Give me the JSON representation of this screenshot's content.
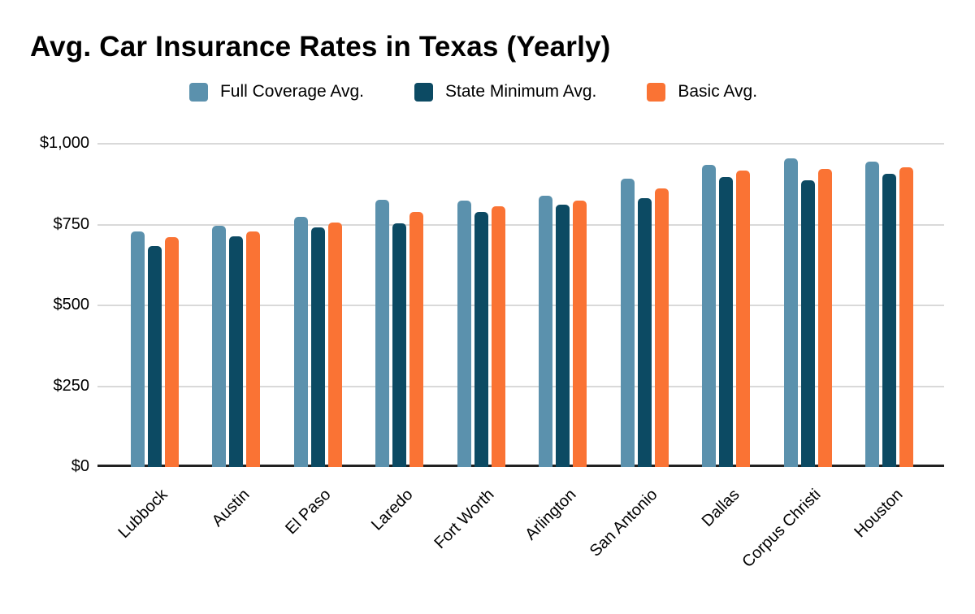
{
  "chart_data": {
    "type": "bar",
    "title": "Avg. Car Insurance Rates in Texas (Yearly)",
    "categories": [
      "Lubbock",
      "Austin",
      "El Paso",
      "Laredo",
      "Fort Worth",
      "Arlington",
      "San Antonio",
      "Dallas",
      "Corpus Christi",
      "Houston"
    ],
    "series": [
      {
        "name": "Full Coverage Avg.",
        "color": "#5b91ad",
        "values": [
          729,
          745,
          773,
          826,
          825,
          840,
          891,
          934,
          956,
          945
        ]
      },
      {
        "name": "State Minimum Avg.",
        "color": "#0c4a63",
        "values": [
          683,
          714,
          740,
          753,
          790,
          811,
          831,
          896,
          886,
          906
        ]
      },
      {
        "name": "Basic Avg.",
        "color": "#fa7334",
        "values": [
          710,
          729,
          756,
          788,
          806,
          825,
          861,
          917,
          922,
          926
        ]
      }
    ],
    "xlabel": "",
    "ylabel": "",
    "ylim": [
      0,
      1000
    ],
    "y_ticks": [
      {
        "value": 1000,
        "label": "$1,000"
      },
      {
        "value": 750,
        "label": "$750"
      },
      {
        "value": 500,
        "label": "$500"
      },
      {
        "value": 250,
        "label": "$250"
      },
      {
        "value": 0,
        "label": "$0"
      }
    ],
    "grid": true,
    "legend_position": "top"
  },
  "colors": {
    "background": "#ffffff",
    "gridline": "#d9d9d9",
    "axis": "#212121",
    "text": "#000000"
  }
}
